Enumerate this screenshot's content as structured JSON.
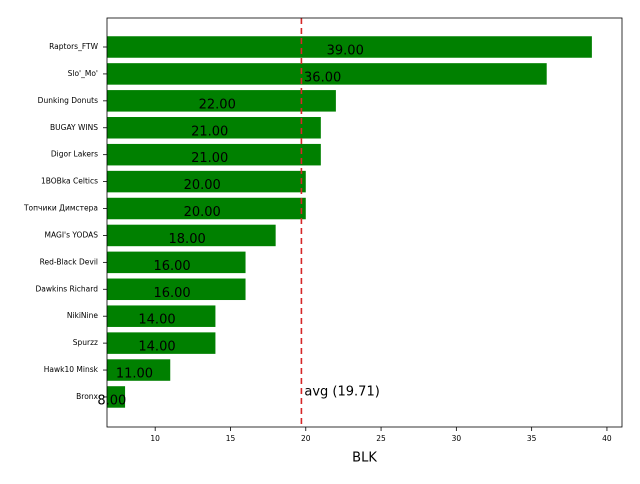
{
  "chart_data": {
    "type": "barh",
    "categories": [
      "Raptors_FTW",
      "Slo'_Mo'",
      "Dunking Donuts",
      "BUGAY WINS",
      "Digor Lakers",
      "1BOBka Celtics",
      "Топчики Димстера",
      "MAGI's YODAS",
      "Red-Black Devil",
      "Dawkins Richard",
      "NikiNine",
      "Spurzz",
      "Hawk10 Minsk",
      "Bronx"
    ],
    "values": [
      39,
      36,
      22,
      21,
      21,
      20,
      20,
      18,
      16,
      16,
      14,
      14,
      11,
      8
    ],
    "value_labels": [
      "39.00",
      "36.00",
      "22.00",
      "21.00",
      "21.00",
      "20.00",
      "20.00",
      "18.00",
      "16.00",
      "16.00",
      "14.00",
      "14.00",
      "11.00",
      "8.00"
    ],
    "color": "#008000",
    "xlabel": "BLK",
    "xlim": [
      6.8,
      41.0
    ],
    "xticks": [
      10,
      15,
      20,
      25,
      30,
      35,
      40
    ],
    "average": {
      "value": 19.71,
      "label": "avg (19.71)",
      "color": "#d62728"
    }
  }
}
